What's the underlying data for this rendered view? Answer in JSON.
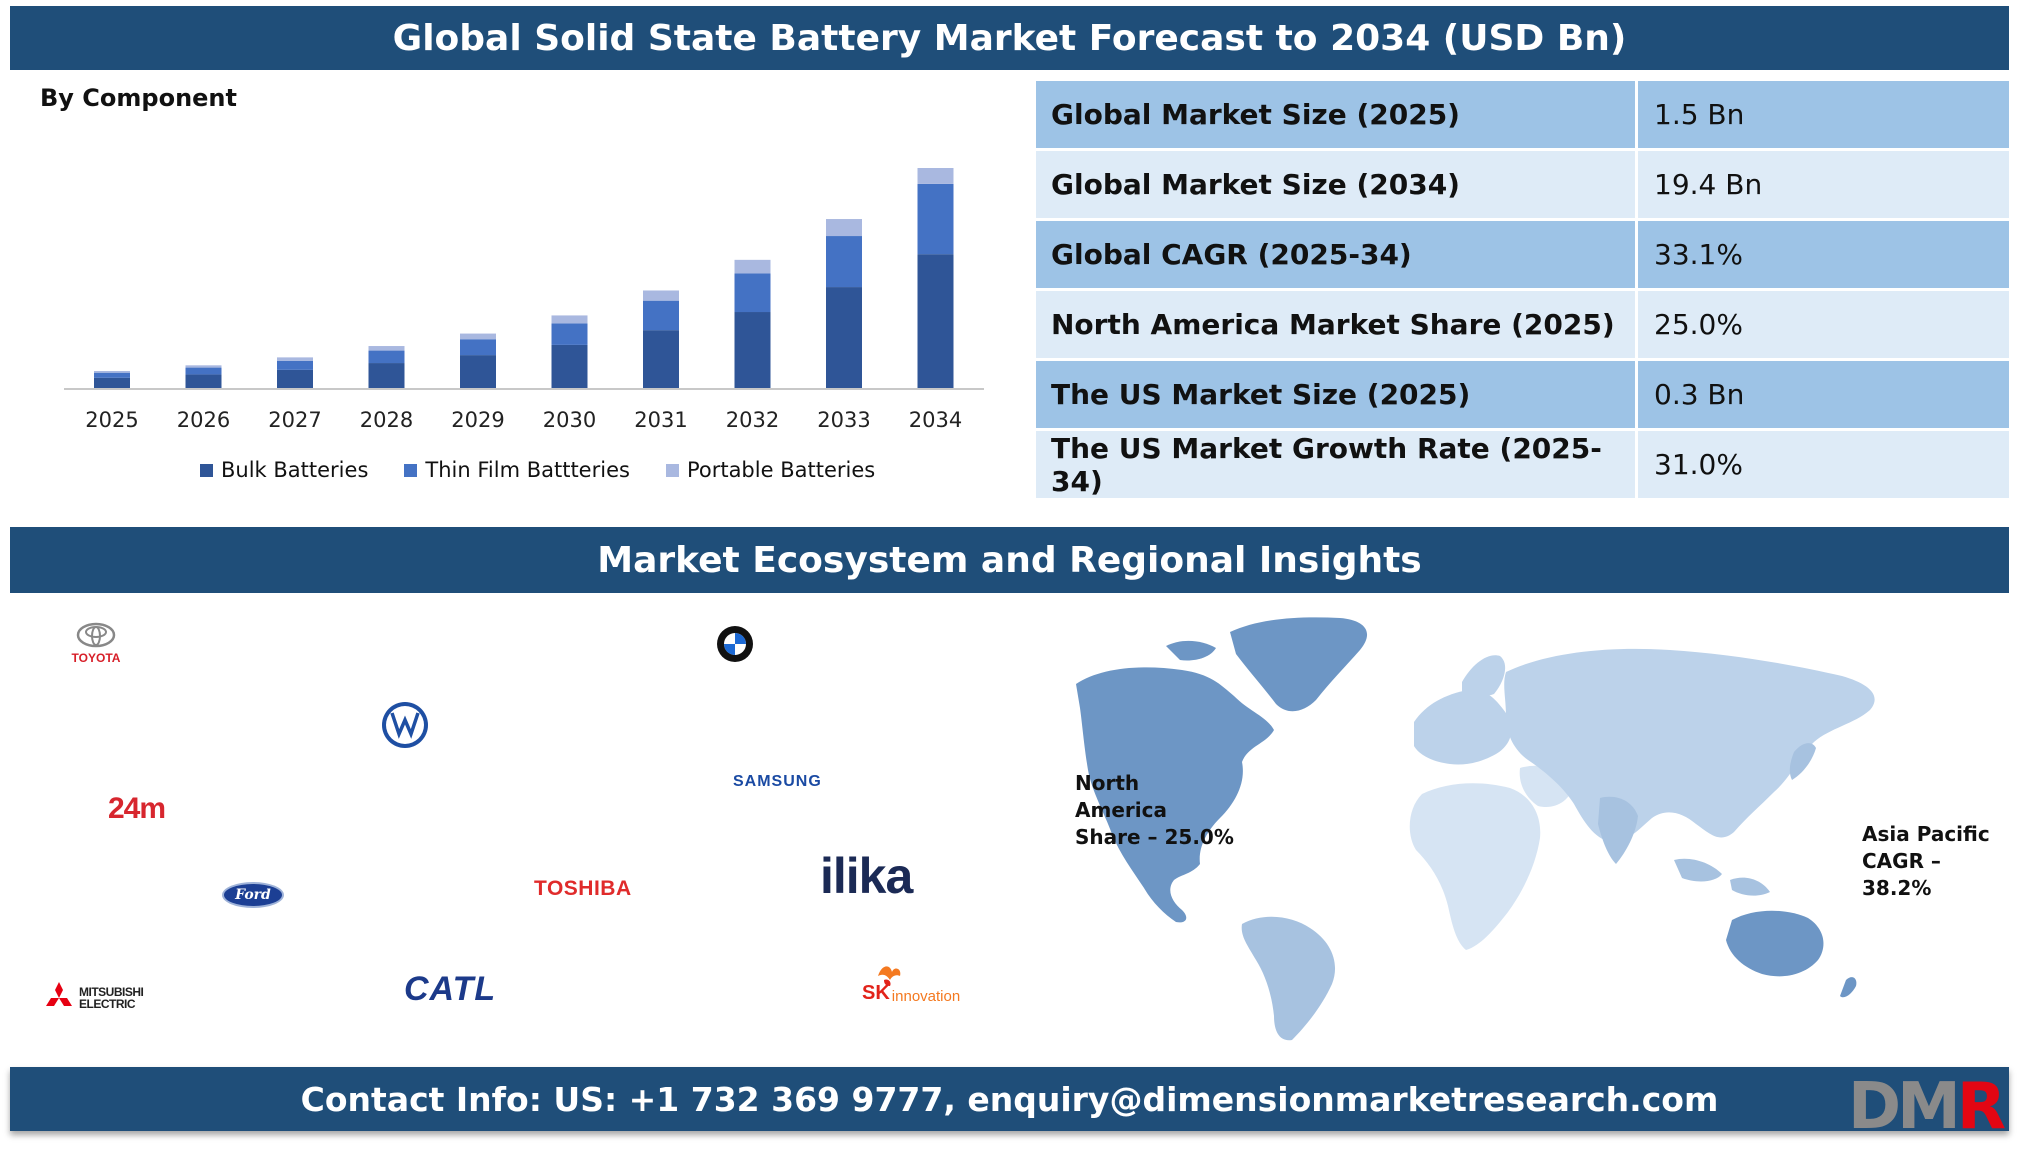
{
  "title": "Global Solid State Battery Market Forecast to 2034 (USD Bn)",
  "chart_subtitle": "By Component",
  "chart_data": {
    "type": "bar",
    "stacked": true,
    "categories": [
      "2025",
      "2026",
      "2027",
      "2028",
      "2029",
      "2030",
      "2031",
      "2032",
      "2033",
      "2034"
    ],
    "series": [
      {
        "name": "Bulk Batteries",
        "color": "#2f5597",
        "values": [
          0.9,
          1.2,
          1.6,
          2.2,
          2.9,
          3.8,
          5.1,
          6.7,
          8.9,
          11.8
        ]
      },
      {
        "name": "Thin Film Battteries",
        "color": "#4472c4",
        "values": [
          0.45,
          0.6,
          0.8,
          1.1,
          1.4,
          1.9,
          2.6,
          3.4,
          4.5,
          6.2
        ]
      },
      {
        "name": "Portable Batteries",
        "color": "#a9b8e0",
        "values": [
          0.15,
          0.2,
          0.3,
          0.4,
          0.5,
          0.7,
          0.9,
          1.2,
          1.5,
          1.4
        ]
      }
    ],
    "legend_position": "bottom",
    "grid": false
  },
  "stats": [
    {
      "label": "Global Market Size (2025)",
      "value": "1.5 Bn",
      "shade": "dark"
    },
    {
      "label": "Global Market Size (2034)",
      "value": "19.4 Bn",
      "shade": "light"
    },
    {
      "label": "Global CAGR (2025-34)",
      "value": "33.1%",
      "shade": "dark"
    },
    {
      "label": "North America Market Share (2025)",
      "value": "25.0%",
      "shade": "light"
    },
    {
      "label": "The US Market Size (2025)",
      "value": "0.3 Bn",
      "shade": "dark"
    },
    {
      "label": "The US Market Growth Rate (2025-34)",
      "value": "31.0%",
      "shade": "light"
    }
  ],
  "section_title": "Market Ecosystem and Regional Insights",
  "logos": {
    "toyota": "TOYOTA",
    "bmw": "BMW",
    "vw": "VW",
    "m24": "24m",
    "samsung": "SAMSUNG",
    "ford": "Ford",
    "toshiba": "TOSHIBA",
    "ilika": "ilika",
    "mitsubishi_line1": "MITSUBISHI",
    "mitsubishi_line2": "ELECTRIC",
    "catl": "CATL",
    "sk_a": "SK",
    "sk_b": "innovation"
  },
  "regions": {
    "north_america": [
      "North",
      "America",
      "Share – 25.0%"
    ],
    "asia_pacific": [
      "Asia Pacific",
      "CAGR –",
      "38.2%"
    ]
  },
  "contact": "Contact Info: US: +1 732 369 9777, enquiry@dimensionmarketresearch.com",
  "brand": {
    "d": "D",
    "m": "M",
    "r": "R"
  },
  "colors": {
    "banner": "#1f4e79",
    "table_dark": "#9dc3e6",
    "table_light": "#deebf7"
  }
}
